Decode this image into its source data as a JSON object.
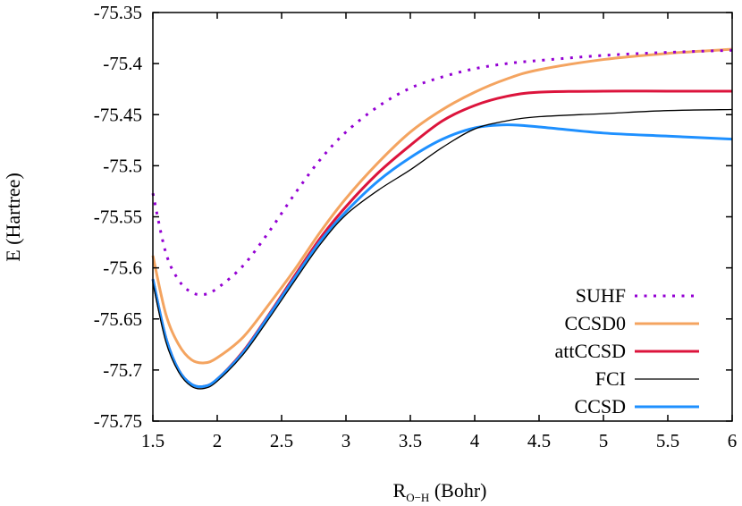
{
  "chart_data": {
    "type": "line",
    "xlabel": "R",
    "xlabel_sub": "O−H",
    "xlabel_unit": " (Bohr)",
    "ylabel": "E (Hartree)",
    "xlim": [
      1.5,
      6
    ],
    "ylim": [
      -75.75,
      -75.35
    ],
    "xticks": [
      "1.5",
      "2",
      "2.5",
      "3",
      "3.5",
      "4",
      "4.5",
      "5",
      "5.5",
      "6"
    ],
    "yticks": [
      "-75.35",
      "-75.4",
      "-75.45",
      "-75.5",
      "-75.55",
      "-75.6",
      "-75.65",
      "-75.7",
      "-75.75"
    ],
    "grid": false,
    "legend_position": "bottom-right",
    "x": [
      1.5,
      1.6,
      1.7,
      1.8,
      1.9,
      2.0,
      2.2,
      2.4,
      2.6,
      2.8,
      3.0,
      3.25,
      3.5,
      3.75,
      4.0,
      4.25,
      4.5,
      5.0,
      5.5,
      6.0
    ],
    "series": [
      {
        "name": "SUHF",
        "color": "#9400d3",
        "style": "dotted",
        "values": [
          -75.527,
          -75.585,
          -75.612,
          -75.624,
          -75.626,
          -75.62,
          -75.598,
          -75.565,
          -75.528,
          -75.494,
          -75.467,
          -75.442,
          -75.424,
          -75.413,
          -75.405,
          -75.4,
          -75.397,
          -75.392,
          -75.389,
          -75.387
        ]
      },
      {
        "name": "CCSD0",
        "color": "#f4a460",
        "style": "solid",
        "values": [
          -75.588,
          -75.645,
          -75.675,
          -75.69,
          -75.693,
          -75.688,
          -75.668,
          -75.636,
          -75.602,
          -75.565,
          -75.532,
          -75.497,
          -75.467,
          -75.445,
          -75.428,
          -75.415,
          -75.406,
          -75.396,
          -75.39,
          -75.386
        ]
      },
      {
        "name": "attCCSD",
        "color": "#dc143c",
        "style": "solid",
        "values": [
          -75.611,
          -75.668,
          -75.7,
          -75.714,
          -75.716,
          -75.709,
          -75.682,
          -75.646,
          -75.608,
          -75.571,
          -75.54,
          -75.507,
          -75.48,
          -75.456,
          -75.441,
          -75.432,
          -75.428,
          -75.427,
          -75.427,
          -75.427
        ]
      },
      {
        "name": "FCI",
        "color": "#000000",
        "style": "solid",
        "values": [
          -75.615,
          -75.672,
          -75.702,
          -75.716,
          -75.718,
          -75.711,
          -75.685,
          -75.65,
          -75.613,
          -75.577,
          -75.548,
          -75.524,
          -75.504,
          -75.482,
          -75.464,
          -75.456,
          -75.452,
          -75.449,
          -75.446,
          -75.445
        ]
      },
      {
        "name": "CCSD",
        "color": "#1e90ff",
        "style": "solid",
        "values": [
          -75.611,
          -75.668,
          -75.7,
          -75.714,
          -75.716,
          -75.709,
          -75.683,
          -75.647,
          -75.61,
          -75.574,
          -75.545,
          -75.515,
          -75.492,
          -75.474,
          -75.463,
          -75.46,
          -75.462,
          -75.468,
          -75.471,
          -75.474
        ]
      }
    ]
  }
}
